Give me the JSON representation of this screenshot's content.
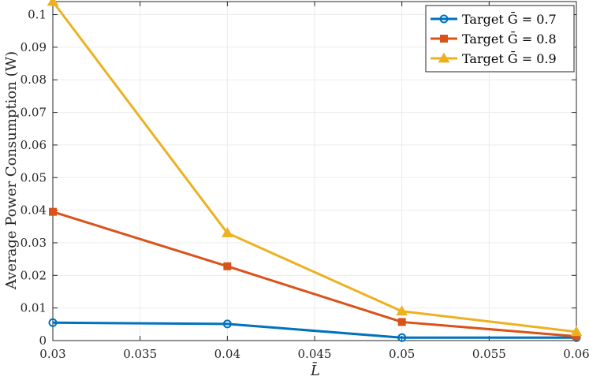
{
  "chart_data": {
    "type": "line",
    "xlabel": "L̄",
    "ylabel": "Average Power Consumption (W)",
    "xlim": [
      0.03,
      0.06
    ],
    "ylim": [
      0,
      0.104
    ],
    "xticks": [
      0.03,
      0.035,
      0.04,
      0.045,
      0.05,
      0.055,
      0.06
    ],
    "xtick_labels": [
      "0.03",
      "0.035",
      "0.04",
      "0.045",
      "0.05",
      "0.055",
      "0.06"
    ],
    "yticks": [
      0,
      0.01,
      0.02,
      0.03,
      0.04,
      0.05,
      0.06,
      0.07,
      0.08,
      0.09,
      0.1
    ],
    "ytick_labels": [
      "0",
      "0.01",
      "0.02",
      "0.03",
      "0.04",
      "0.05",
      "0.06",
      "0.07",
      "0.08",
      "0.09",
      "0.1"
    ],
    "grid": true,
    "legend_position": "top-right",
    "x": [
      0.03,
      0.04,
      0.05,
      0.06
    ],
    "series": [
      {
        "name": "Target Ḡ = 0.7",
        "values": [
          0.0055,
          0.0051,
          0.0009,
          0.0009
        ],
        "color": "#0072BD",
        "marker": "circle"
      },
      {
        "name": "Target Ḡ = 0.8",
        "values": [
          0.0395,
          0.0228,
          0.0057,
          0.0013
        ],
        "color": "#D95319",
        "marker": "square"
      },
      {
        "name": "Target Ḡ = 0.9",
        "values": [
          0.104,
          0.033,
          0.009,
          0.0027
        ],
        "color": "#EDB120",
        "marker": "triangle"
      }
    ]
  }
}
